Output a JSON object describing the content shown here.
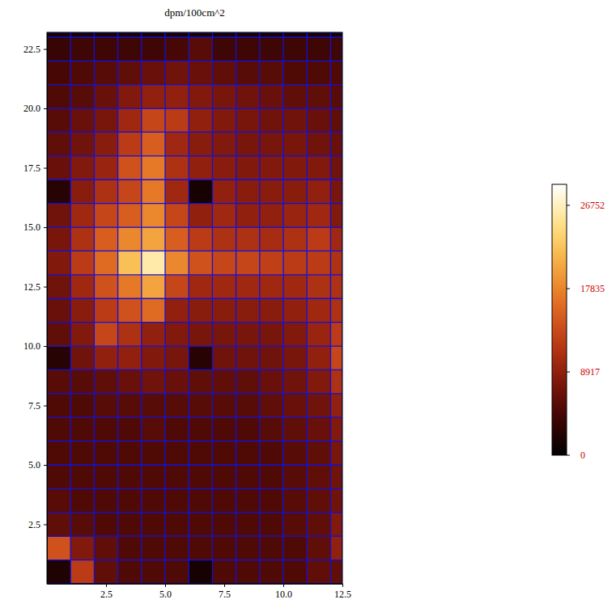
{
  "chart_data": {
    "type": "heatmap",
    "title": "dpm/100cm^2",
    "x_bins": [
      0,
      1,
      2,
      3,
      4,
      5,
      6,
      7,
      8,
      9,
      10,
      11,
      12,
      12.5
    ],
    "y_bins": [
      0,
      1,
      2,
      3,
      4,
      5,
      6,
      7,
      8,
      9,
      10,
      11,
      12,
      13,
      14,
      15,
      16,
      17,
      18,
      19,
      20,
      21,
      22,
      23,
      23.2
    ],
    "cells": [
      [
        2000,
        12000,
        6000,
        5000,
        5000,
        5000,
        1500,
        5000,
        5000,
        5000,
        5000,
        6000,
        6000
      ],
      [
        14000,
        8000,
        6000,
        5000,
        5000,
        5000,
        5000,
        5000,
        5000,
        5000,
        5000,
        6000,
        9000
      ],
      [
        6000,
        5500,
        5000,
        5000,
        5000,
        5000,
        5000,
        5000,
        5000,
        5000,
        5500,
        6000,
        8000
      ],
      [
        5500,
        5000,
        5000,
        5000,
        5000,
        5000,
        5000,
        5000,
        5000,
        5000,
        5500,
        6000,
        7000
      ],
      [
        5000,
        5000,
        5000,
        5000,
        5000,
        5000,
        5000,
        5000,
        5000,
        5000,
        5500,
        6000,
        7000
      ],
      [
        5000,
        5000,
        5000,
        5000,
        5000,
        5000,
        5000,
        5000,
        5000,
        5000,
        5500,
        6000,
        7500
      ],
      [
        5000,
        5000,
        5000,
        5000,
        5500,
        5000,
        5000,
        5000,
        5000,
        5500,
        6000,
        6500,
        8000
      ],
      [
        5000,
        5000,
        5500,
        5500,
        5500,
        5500,
        5500,
        5500,
        5500,
        6000,
        6500,
        7000,
        9000
      ],
      [
        5500,
        5500,
        6000,
        6500,
        7000,
        6500,
        6000,
        6000,
        6000,
        6500,
        7000,
        8000,
        11000
      ],
      [
        2500,
        7000,
        9000,
        9000,
        8000,
        7500,
        2500,
        7000,
        7000,
        7000,
        7500,
        9000,
        13000
      ],
      [
        6000,
        8000,
        13000,
        11000,
        9000,
        8000,
        7500,
        7500,
        7500,
        7500,
        8000,
        9500,
        12000
      ],
      [
        6500,
        8500,
        12000,
        14000,
        16000,
        9000,
        8500,
        8500,
        8500,
        8500,
        9000,
        10000,
        11000
      ],
      [
        7000,
        10000,
        14000,
        17000,
        20000,
        13000,
        10000,
        10000,
        10000,
        10000,
        10000,
        11000,
        11000
      ],
      [
        8000,
        12000,
        16000,
        22000,
        26000,
        18000,
        14000,
        13000,
        13000,
        12500,
        12000,
        12000,
        11000
      ],
      [
        7500,
        11000,
        15000,
        18000,
        20000,
        15000,
        12000,
        11000,
        11000,
        10500,
        11000,
        12000,
        10000
      ],
      [
        7000,
        10000,
        13000,
        15000,
        18000,
        13000,
        9000,
        10000,
        9000,
        9000,
        9500,
        10000,
        8000
      ],
      [
        2500,
        8500,
        11000,
        13000,
        17000,
        10000,
        1500,
        9000,
        8500,
        8500,
        8500,
        9000,
        7500
      ],
      [
        6500,
        8000,
        9500,
        14000,
        17000,
        11000,
        9000,
        8500,
        8000,
        8000,
        8000,
        8000,
        7000
      ],
      [
        6000,
        7000,
        8500,
        12000,
        15000,
        10000,
        8500,
        8000,
        7500,
        7500,
        7500,
        7000,
        6500
      ],
      [
        5500,
        6500,
        7500,
        10000,
        13000,
        12000,
        9000,
        8000,
        7500,
        7000,
        7000,
        6500,
        6000
      ],
      [
        5000,
        5500,
        6500,
        8000,
        9000,
        9000,
        8000,
        7500,
        7000,
        6500,
        6000,
        6000,
        5500
      ],
      [
        4500,
        5000,
        5500,
        6000,
        6500,
        7000,
        6500,
        6000,
        5500,
        5500,
        5000,
        5000,
        5000
      ],
      [
        3500,
        4000,
        4000,
        4000,
        4000,
        4500,
        5500,
        4000,
        4000,
        4000,
        4000,
        4000,
        4000
      ],
      [
        1500,
        1500,
        1500,
        1500,
        1500,
        1500,
        1500,
        1500,
        1500,
        1500,
        1500,
        1500,
        1500
      ]
    ],
    "xlim": [
      0,
      12.5
    ],
    "ylim": [
      0,
      23.2
    ],
    "xticks": [
      2.5,
      {
        "value": 5,
        "label": "5.0"
      },
      7.5,
      {
        "value": 10,
        "label": "10.0"
      },
      12.5
    ],
    "yticks": [
      2.5,
      {
        "value": 5,
        "label": "5.0"
      },
      7.5,
      {
        "value": 10,
        "label": "10.0"
      },
      12.5,
      {
        "value": 15,
        "label": "15.0"
      },
      17.5,
      {
        "value": 20,
        "label": "20.0"
      },
      22.5
    ],
    "grid": true,
    "colorbar": {
      "range": [
        0,
        29000
      ],
      "ticks": [
        0,
        8917,
        17835,
        26752
      ]
    }
  }
}
